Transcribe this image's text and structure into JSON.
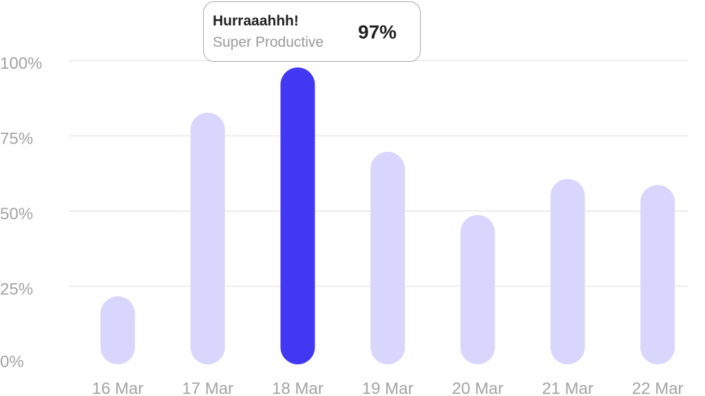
{
  "chart_data": {
    "type": "bar",
    "categories": [
      "16 Mar",
      "17 Mar",
      "18 Mar",
      "19 Mar",
      "20 Mar",
      "21 Mar",
      "22 Mar"
    ],
    "values": [
      21,
      82,
      97,
      69,
      48,
      60,
      58
    ],
    "ylim": [
      0,
      100
    ],
    "yticks": [
      "0%",
      "25%",
      "50%",
      "75%",
      "100%"
    ],
    "ytick_values": [
      0,
      25,
      50,
      75,
      100
    ],
    "grid": true,
    "highlighted_index": 2,
    "colors": {
      "bar": "#d9d6fe",
      "highlight": "#4338f2",
      "grid": "#ececec"
    }
  },
  "tooltip": {
    "title": "Hurraaahhh!",
    "subtitle": "Super Productive",
    "value": "97%"
  }
}
